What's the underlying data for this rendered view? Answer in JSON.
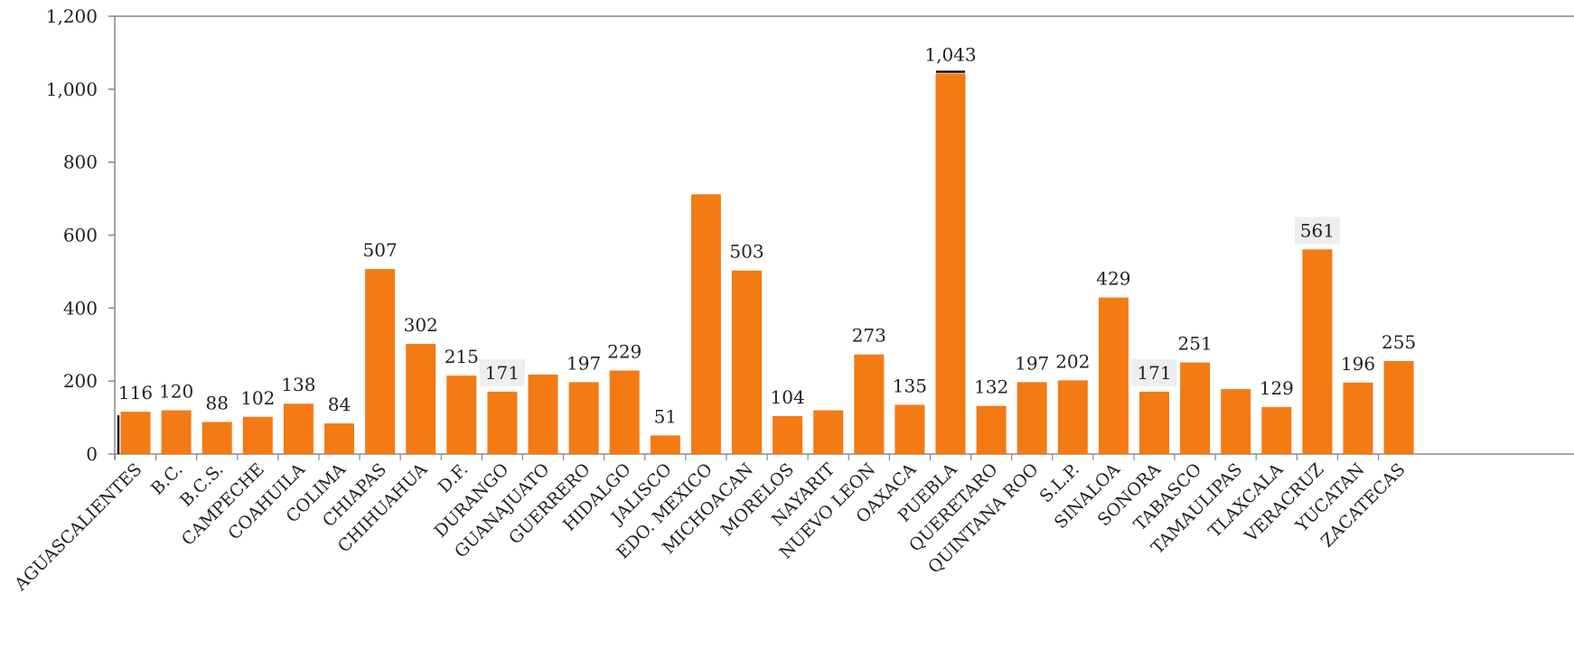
{
  "chart_data": {
    "type": "bar",
    "categories": [
      "AGUASCALIENTES",
      "B.C.",
      "B.C.S.",
      "CAMPECHE",
      "COAHUILA",
      "COLIMA",
      "CHIAPAS",
      "CHIHUAHUA",
      "D.F.",
      "DURANGO",
      "GUANAJUATO",
      "GUERRERO",
      "HIDALGO",
      "JALISCO",
      "EDO. MEXICO",
      "MICHOACAN",
      "MORELOS",
      "NAYARIT",
      "NUEVO LEON",
      "OAXACA",
      "PUEBLA",
      "QUERETARO",
      "QUINTANA ROO",
      "S.L.P.",
      "SINALOA",
      "SONORA",
      "TABASCO",
      "TAMAULIPAS",
      "TLAXCALA",
      "VERACRUZ",
      "YUCATAN",
      "ZACATECAS"
    ],
    "values": [
      116,
      120,
      88,
      102,
      138,
      84,
      507,
      302,
      215,
      171,
      218,
      197,
      229,
      51,
      712,
      503,
      104,
      120,
      273,
      135,
      1043,
      132,
      197,
      202,
      429,
      171,
      251,
      178,
      129,
      561,
      196,
      255
    ],
    "data_labels": [
      "116",
      "120",
      "88",
      "102",
      "138",
      "84",
      "507",
      "302",
      "215",
      "171",
      "",
      "197",
      "229",
      "51",
      "",
      "503",
      "104",
      "",
      "273",
      "135",
      "1,043",
      "132",
      "197",
      "202",
      "429",
      "171",
      "251",
      "",
      "129",
      "561",
      "196",
      "255"
    ],
    "highlighted_labels": [
      9,
      25,
      29
    ],
    "y_ticks": [
      0,
      200,
      400,
      600,
      800,
      1000,
      1200
    ],
    "y_tick_labels": [
      "0",
      "200",
      "400",
      "600",
      "800",
      "1,000",
      "1,200"
    ],
    "ylim": [
      0,
      1200
    ],
    "title": "",
    "xlabel": "",
    "ylabel": "",
    "grid": false,
    "legend": "none",
    "bar_color": "#f47a14",
    "axis_color": "#888888"
  }
}
